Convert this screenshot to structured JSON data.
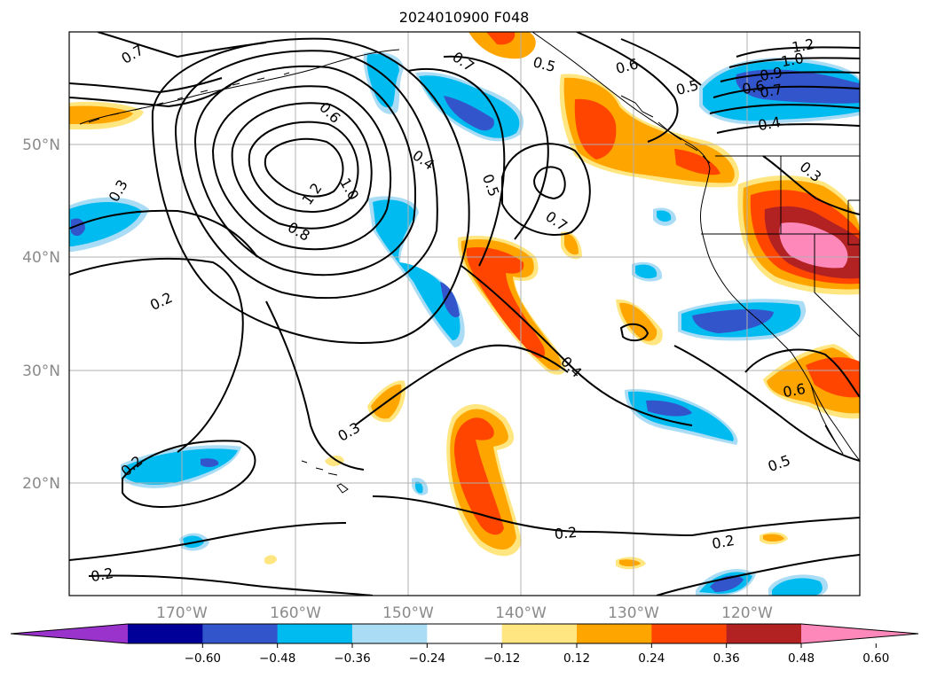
{
  "title": "2024010900 F048",
  "latitude_labels": [
    "50°N",
    "40°N",
    "30°N",
    "20°N"
  ],
  "longitude_labels": [
    "170°W",
    "160°W",
    "150°W",
    "140°W",
    "130°W",
    "120°W"
  ],
  "colorbar": {
    "tick_labels": [
      "−0.60",
      "−0.48",
      "−0.36",
      "−0.24",
      "−0.12",
      "0.12",
      "0.24",
      "0.36",
      "0.48",
      "0.60"
    ],
    "colors": [
      "#9933cc",
      "#000099",
      "#3355cc",
      "#00bbf0",
      "#aaddf5",
      "#ffffff",
      "#ffe680",
      "#ffa500",
      "#ff4500",
      "#b22222",
      "#ff88bb"
    ]
  },
  "contour_labels": [
    "0.7",
    "0.7",
    "0.5",
    "0.6",
    "1.2",
    "1.0",
    "0.9",
    "0.7",
    "0.6",
    "0.5",
    "0.4",
    "0.3",
    "0.6",
    "0.4",
    "1.2",
    "1.0",
    "0.8",
    "0.5",
    "0.7",
    "0.3",
    "0.2",
    "0.4",
    "0.3",
    "0.6",
    "0.5",
    "0.2",
    "0.2",
    "0.2",
    "0.2"
  ]
}
